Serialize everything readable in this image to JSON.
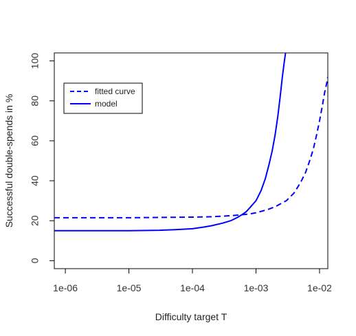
{
  "chart_data": {
    "type": "line",
    "xlabel": "Difficulty target T",
    "ylabel": "Successful double-spends in %",
    "x_scale": "log10",
    "xlim": [
      6.7e-07,
      0.0135
    ],
    "ylim": [
      -4,
      104
    ],
    "x_ticks": [
      {
        "value": 1e-06,
        "label": "1e-06"
      },
      {
        "value": 1e-05,
        "label": "1e-05"
      },
      {
        "value": 0.0001,
        "label": "1e-04"
      },
      {
        "value": 0.001,
        "label": "1e-03"
      },
      {
        "value": 0.01,
        "label": "1e-02"
      }
    ],
    "y_ticks": [
      {
        "value": 0,
        "label": "0"
      },
      {
        "value": 20,
        "label": "20"
      },
      {
        "value": 40,
        "label": "40"
      },
      {
        "value": 60,
        "label": "60"
      },
      {
        "value": 80,
        "label": "80"
      },
      {
        "value": 100,
        "label": "100"
      }
    ],
    "grid": false,
    "legend_position": "top-left",
    "series": [
      {
        "name": "fitted curve",
        "style": "dashed",
        "color": "#0000ff",
        "points": [
          [
            6.7e-07,
            21.5
          ],
          [
            1e-06,
            21.5
          ],
          [
            1e-05,
            21.5
          ],
          [
            0.0001,
            21.8
          ],
          [
            0.0002,
            22.0
          ],
          [
            0.0004,
            22.5
          ],
          [
            0.0006,
            23.0
          ],
          [
            0.0008,
            23.4
          ],
          [
            0.001,
            24.0
          ],
          [
            0.0015,
            25.5
          ],
          [
            0.002,
            27.0
          ],
          [
            0.003,
            30.0
          ],
          [
            0.004,
            34.0
          ],
          [
            0.005,
            39.0
          ],
          [
            0.006,
            44.0
          ],
          [
            0.007,
            50.0
          ],
          [
            0.008,
            56.0
          ],
          [
            0.009,
            63.0
          ],
          [
            0.01,
            70.0
          ],
          [
            0.011,
            77.0
          ],
          [
            0.012,
            84.0
          ],
          [
            0.013,
            89.0
          ],
          [
            0.0135,
            92.0
          ]
        ]
      },
      {
        "name": "model",
        "style": "solid",
        "color": "#0000ff",
        "points": [
          [
            6.7e-07,
            15.0
          ],
          [
            1e-06,
            15.0
          ],
          [
            1e-05,
            15.0
          ],
          [
            3e-05,
            15.2
          ],
          [
            6e-05,
            15.6
          ],
          [
            0.0001,
            16.0
          ],
          [
            0.00015,
            16.8
          ],
          [
            0.0002,
            17.5
          ],
          [
            0.0003,
            18.8
          ],
          [
            0.0004,
            20.0
          ],
          [
            0.0005,
            21.5
          ],
          [
            0.0006,
            23.0
          ],
          [
            0.0007,
            24.5
          ],
          [
            0.0008,
            26.5
          ],
          [
            0.001,
            30.0
          ],
          [
            0.0012,
            35.0
          ],
          [
            0.0014,
            41.0
          ],
          [
            0.0016,
            48.0
          ],
          [
            0.0018,
            55.0
          ],
          [
            0.002,
            63.0
          ],
          [
            0.0022,
            72.0
          ],
          [
            0.0024,
            82.0
          ],
          [
            0.0026,
            92.0
          ],
          [
            0.0028,
            100.0
          ],
          [
            0.00292,
            104.0
          ]
        ]
      }
    ]
  }
}
